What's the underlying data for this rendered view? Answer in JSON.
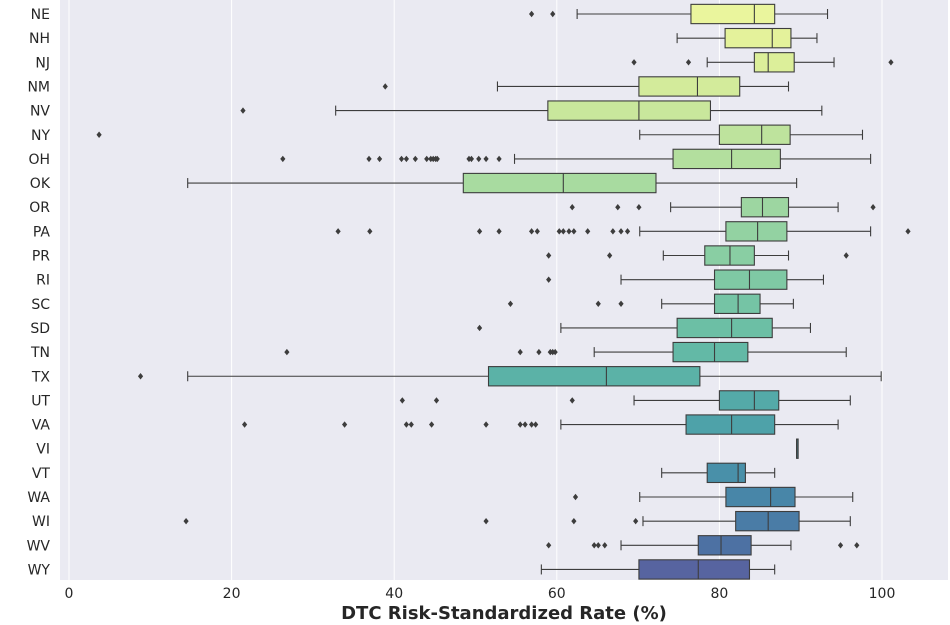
{
  "chart_data": {
    "type": "boxplot",
    "orientation": "horizontal",
    "title": "",
    "xlabel": "DTC Risk-Standardized Rate (%)",
    "ylabel": "",
    "xlim": [
      -1,
      108
    ],
    "xticks": [
      0,
      20,
      40,
      60,
      80,
      100
    ],
    "grid": true,
    "background": "#eaeaf2",
    "categories": [
      "NE",
      "NH",
      "NJ",
      "NM",
      "NV",
      "NY",
      "OH",
      "OK",
      "OR",
      "PA",
      "PR",
      "RI",
      "SC",
      "SD",
      "TN",
      "TX",
      "UT",
      "VA",
      "VI",
      "VT",
      "WA",
      "WI",
      "WV",
      "WY"
    ],
    "boxes": [
      {
        "state": "NE",
        "whisker_low": 62.5,
        "q1": 76.5,
        "median": 84.3,
        "q3": 86.8,
        "whisker_high": 93.3,
        "outliers": [
          56.9,
          59.5
        ],
        "color": "#eaf59d"
      },
      {
        "state": "NH",
        "whisker_low": 74.8,
        "q1": 80.7,
        "median": 86.5,
        "q3": 88.8,
        "whisker_high": 92.0,
        "outliers": [],
        "color": "#e4f29b"
      },
      {
        "state": "NJ",
        "whisker_low": 78.5,
        "q1": 84.3,
        "median": 86.0,
        "q3": 89.2,
        "whisker_high": 94.1,
        "outliers": [
          69.5,
          76.2,
          101.1
        ],
        "color": "#dcef9a"
      },
      {
        "state": "NM",
        "whisker_low": 52.7,
        "q1": 70.1,
        "median": 77.3,
        "q3": 82.5,
        "whisker_high": 88.5,
        "outliers": [
          38.9
        ],
        "color": "#d3eb9b"
      },
      {
        "state": "NV",
        "whisker_low": 32.8,
        "q1": 58.9,
        "median": 70.1,
        "q3": 78.9,
        "whisker_high": 92.6,
        "outliers": [
          21.4
        ],
        "color": "#c9e79c"
      },
      {
        "state": "NY",
        "whisker_low": 70.2,
        "q1": 80.0,
        "median": 85.2,
        "q3": 88.7,
        "whisker_high": 97.6,
        "outliers": [
          3.7
        ],
        "color": "#bee39d"
      },
      {
        "state": "OH",
        "whisker_low": 54.8,
        "q1": 74.3,
        "median": 81.5,
        "q3": 87.5,
        "whisker_high": 98.6,
        "outliers": [
          26.3,
          36.9,
          38.2,
          40.9,
          41.5,
          42.6,
          44.0,
          44.5,
          44.8,
          45.1,
          45.3,
          49.2,
          49.5,
          50.4,
          51.3,
          52.9
        ],
        "color": "#b3df9e"
      },
      {
        "state": "OK",
        "whisker_low": 14.6,
        "q1": 48.5,
        "median": 60.8,
        "q3": 72.2,
        "whisker_high": 89.5,
        "outliers": [],
        "color": "#a8dba0"
      },
      {
        "state": "OR",
        "whisker_low": 74.0,
        "q1": 82.7,
        "median": 85.3,
        "q3": 88.5,
        "whisker_high": 94.6,
        "outliers": [
          61.9,
          67.5,
          70.1,
          98.9
        ],
        "color": "#9dd6a1"
      },
      {
        "state": "PA",
        "whisker_low": 70.2,
        "q1": 80.8,
        "median": 84.7,
        "q3": 88.3,
        "whisker_high": 98.6,
        "outliers": [
          33.1,
          37.0,
          50.5,
          52.9,
          56.9,
          57.6,
          60.3,
          60.8,
          61.5,
          62.1,
          63.8,
          66.9,
          67.9,
          68.7,
          103.2
        ],
        "color": "#93d2a2"
      },
      {
        "state": "PR",
        "whisker_low": 73.1,
        "q1": 78.2,
        "median": 81.3,
        "q3": 84.3,
        "whisker_high": 88.5,
        "outliers": [
          59.0,
          66.5,
          95.6
        ],
        "color": "#89cea3"
      },
      {
        "state": "RI",
        "whisker_low": 67.9,
        "q1": 79.4,
        "median": 83.7,
        "q3": 88.3,
        "whisker_high": 92.8,
        "outliers": [
          59.0
        ],
        "color": "#7fc9a4"
      },
      {
        "state": "SC",
        "whisker_low": 72.9,
        "q1": 79.4,
        "median": 82.3,
        "q3": 85.0,
        "whisker_high": 89.1,
        "outliers": [
          54.3,
          65.1,
          67.9
        ],
        "color": "#75c4a5"
      },
      {
        "state": "SD",
        "whisker_low": 60.5,
        "q1": 74.8,
        "median": 81.5,
        "q3": 86.5,
        "whisker_high": 91.2,
        "outliers": [
          50.5
        ],
        "color": "#6cbfa5"
      },
      {
        "state": "TN",
        "whisker_low": 64.6,
        "q1": 74.3,
        "median": 79.4,
        "q3": 83.5,
        "whisker_high": 95.6,
        "outliers": [
          26.8,
          55.5,
          57.8,
          59.2,
          59.5,
          59.8
        ],
        "color": "#63b9a6"
      },
      {
        "state": "TX",
        "whisker_low": 14.6,
        "q1": 51.6,
        "median": 66.1,
        "q3": 77.6,
        "whisker_high": 99.9,
        "outliers": [
          8.8
        ],
        "color": "#5bb2a7"
      },
      {
        "state": "UT",
        "whisker_low": 69.5,
        "q1": 80.0,
        "median": 84.3,
        "q3": 87.3,
        "whisker_high": 96.1,
        "outliers": [
          41.0,
          45.2,
          61.9
        ],
        "color": "#54aaa8"
      },
      {
        "state": "VA",
        "whisker_low": 60.5,
        "q1": 75.9,
        "median": 81.5,
        "q3": 86.8,
        "whisker_high": 94.6,
        "outliers": [
          21.6,
          33.9,
          41.5,
          42.1,
          44.6,
          51.3,
          55.5,
          56.1,
          56.9,
          57.4
        ],
        "color": "#4ea2a9"
      },
      {
        "state": "VI",
        "whisker_low": 89.5,
        "q1": 89.5,
        "median": 89.5,
        "q3": 89.6,
        "whisker_high": 89.6,
        "outliers": [],
        "color": "#4b99a9"
      },
      {
        "state": "VT",
        "whisker_low": 72.9,
        "q1": 78.5,
        "median": 82.3,
        "q3": 83.2,
        "whisker_high": 86.8,
        "outliers": [],
        "color": "#4990a9"
      },
      {
        "state": "WA",
        "whisker_low": 70.2,
        "q1": 80.8,
        "median": 86.3,
        "q3": 89.3,
        "whisker_high": 96.4,
        "outliers": [
          62.3
        ],
        "color": "#4886a8"
      },
      {
        "state": "WI",
        "whisker_low": 70.6,
        "q1": 82.0,
        "median": 86.0,
        "q3": 89.8,
        "whisker_high": 96.1,
        "outliers": [
          14.4,
          51.3,
          62.1,
          69.7
        ],
        "color": "#4a7ca6"
      },
      {
        "state": "WV",
        "whisker_low": 67.9,
        "q1": 77.4,
        "median": 80.2,
        "q3": 83.9,
        "whisker_high": 88.8,
        "outliers": [
          59.0,
          64.6,
          65.1,
          65.9,
          94.9,
          96.9
        ],
        "color": "#4d71a3"
      },
      {
        "state": "WY",
        "whisker_low": 58.1,
        "q1": 70.1,
        "median": 77.4,
        "q3": 83.7,
        "whisker_high": 86.8,
        "outliers": [],
        "color": "#5764a0"
      }
    ]
  }
}
